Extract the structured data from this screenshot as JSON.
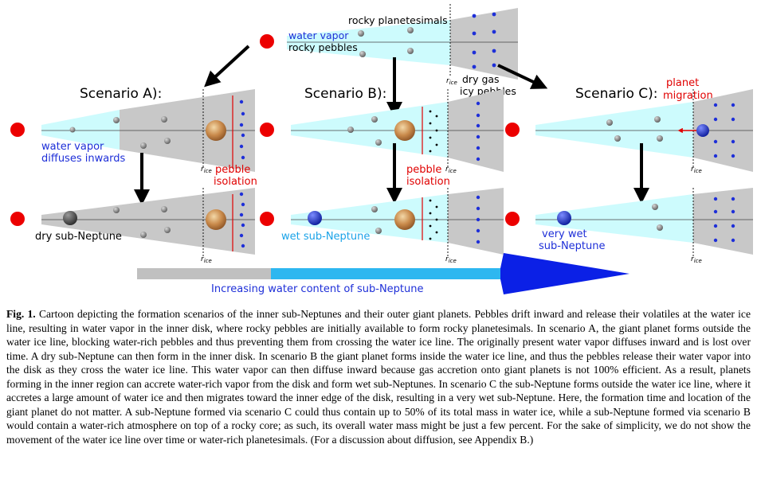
{
  "figure": {
    "top_labels": {
      "rocky_planetesimals": "rocky planetesimals",
      "water_vapor": "water vapor",
      "rocky_pebbles": "rocky pebbles",
      "dry_gas": "dry gas",
      "icy_pebbles": "icy pebbles"
    },
    "ice_line_symbol": "r",
    "ice_line_subscript": "ice",
    "scenarios": {
      "a_title": "Scenario A):",
      "b_title": "Scenario B):",
      "c_title": "Scenario C):"
    },
    "labels": {
      "water_vapor_diffuses_line1": "water vapor",
      "water_vapor_diffuses_line2": "diffuses inwards",
      "pebble_isolation_line1": "pebble",
      "pebble_isolation_line2": "isolation",
      "planet_migration_line1": "planet",
      "planet_migration_line2": "migration",
      "dry_sub_neptune": "dry sub-Neptune",
      "wet_sub_neptune": "wet sub-Neptune",
      "very_wet_line1": "very wet",
      "very_wet_line2": "sub-Neptune"
    },
    "bar_label": "Increasing water content of sub-Neptune",
    "colors": {
      "disk_gray": "#c8c8c8",
      "water_cyan": "#cdfbfd",
      "star_red": "#ec0000",
      "label_blue": "#1e2fd8",
      "label_red": "#e00000",
      "bar_gray": "#c0c0c0",
      "bar_cyan": "#2db7f0",
      "bar_blue": "#0b20e6"
    }
  },
  "caption": {
    "label": "Fig. 1.",
    "text": "Cartoon depicting the formation scenarios of the inner sub-Neptunes and their outer giant planets. Pebbles drift inward and release their volatiles at the water ice line, resulting in water vapor in the inner disk, where rocky pebbles are initially available to form rocky planetesimals. In scenario A, the giant planet forms outside the water ice line, blocking water-rich pebbles and thus preventing them from crossing the water ice line. The originally present water vapor diffuses inward and is lost over time. A dry sub-Neptune can then form in the inner disk. In scenario B the giant planet forms inside the water ice line, and thus the pebbles release their water vapor into the disk as they cross the water ice line. This water vapor can then diffuse inward because gas accretion onto giant planets is not 100% efficient. As a result, planets forming in the inner region can accrete water-rich vapor from the disk and form wet sub-Neptunes. In scenario C the sub-Neptune forms outside the water ice line, where it accretes a large amount of water ice and then migrates toward the inner edge of the disk, resulting in a very wet sub-Neptune. Here, the formation time and location of the giant planet do not matter. A sub-Neptune formed via scenario C could thus contain up to 50% of its total mass in water ice, while a sub-Neptune formed via scenario B would contain a water-rich atmosphere on top of a rocky core; as such, its overall water mass might be just a few percent. For the sake of simplicity, we do not show the movement of the water ice line over time or water-rich planetesimals. (For a discussion about diffusion, see Appendix B.)"
  }
}
